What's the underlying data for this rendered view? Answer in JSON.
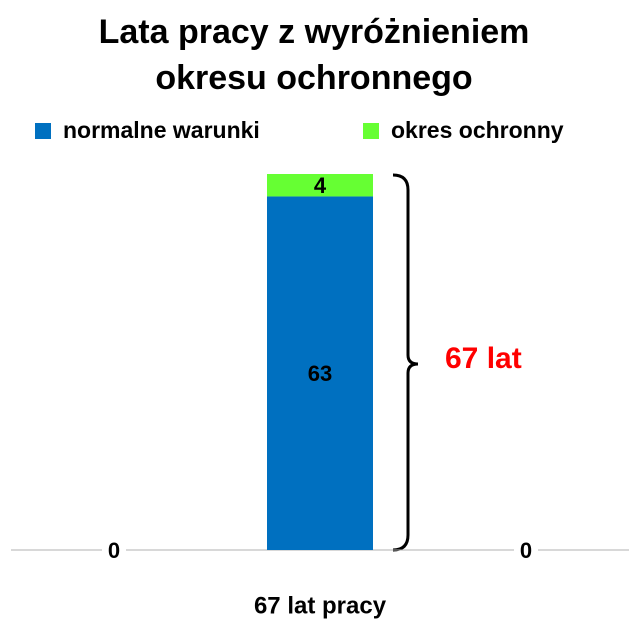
{
  "chart_data": {
    "type": "stacked_bar",
    "title_lines": [
      "Lata pracy z wyróżnieniem",
      "okresu ochronnego"
    ],
    "categories": [
      null,
      "67 lat pracy",
      null
    ],
    "series": [
      {
        "name": "normalne warunki",
        "color": "#0070c0",
        "values": [
          0,
          63,
          0
        ]
      },
      {
        "name": "okres ochronny",
        "color": "#66ff33",
        "values": [
          null,
          4,
          null
        ]
      }
    ],
    "ylim": [
      0,
      67
    ],
    "annotation": "67 lat",
    "annotation_color": "#ff0000",
    "legend": "top"
  }
}
